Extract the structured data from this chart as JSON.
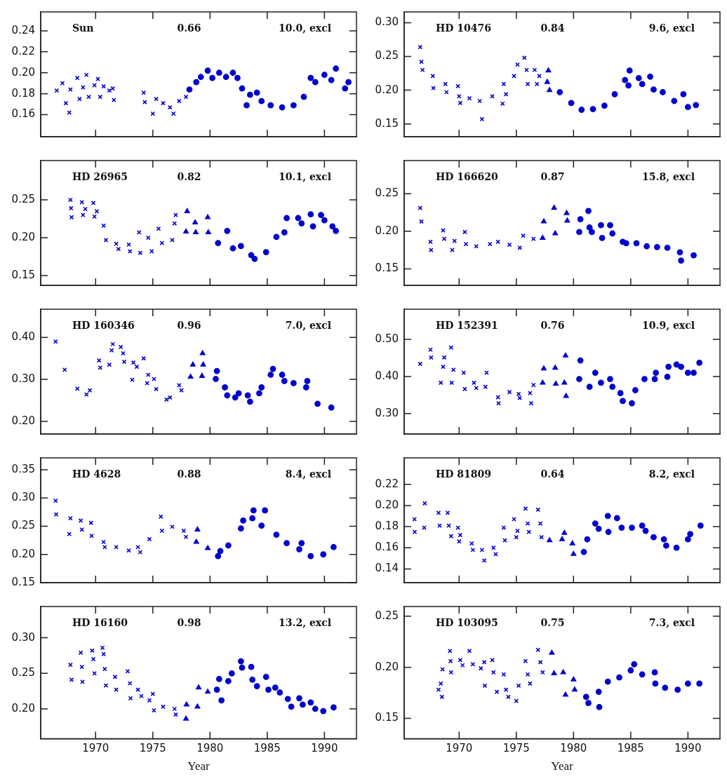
{
  "chart_data": [
    {
      "type": "scatter",
      "annotations": [
        "Sun",
        "0.66",
        "10.0, excl"
      ],
      "tick_labels": "y",
      "xlim": [
        1965.2,
        1992.8
      ],
      "xticks": [
        1970,
        1975,
        1980,
        1985,
        1990
      ],
      "ylim": [
        0.139,
        0.258
      ],
      "yticks": [
        0.16,
        0.18,
        {
          "value": 0.2,
          "label": "0.20"
        },
        0.22,
        0.24
      ],
      "series": [
        {
          "marker": "cross",
          "color": "#0000cc",
          "x": [
            1966.6,
            1967.1,
            1967.4,
            1967.7,
            1967.8,
            1968.4,
            1968.6,
            1968.9,
            1969.2,
            1969.4,
            1969.9,
            1970.2,
            1970.4,
            1970.7,
            1971.2,
            1971.5,
            1971.6,
            1974.2,
            1974.3,
            1975.0,
            1975.3,
            1975.9,
            1976.5,
            1976.8,
            1977.3,
            1977.9
          ],
          "values": [
            0.183,
            0.19,
            0.171,
            0.162,
            0.184,
            0.195,
            0.175,
            0.186,
            0.198,
            0.177,
            0.188,
            0.194,
            0.177,
            0.187,
            0.183,
            0.185,
            0.174,
            0.181,
            0.172,
            0.161,
            0.175,
            0.171,
            0.167,
            0.161,
            0.173,
            0.177
          ]
        },
        {
          "marker": "circle",
          "color": "#0000cc",
          "x": [
            1978.2,
            1978.8,
            1979.2,
            1979.8,
            1980.2,
            1980.8,
            1981.4,
            1982.0,
            1982.4,
            1982.8,
            1983.2,
            1983.5,
            1984.1,
            1984.5,
            1985.3,
            1986.3,
            1987.3,
            1988.2,
            1988.8,
            1989.2,
            1990.0,
            1990.6,
            1991.0,
            1991.8,
            1992.1
          ],
          "values": [
            0.184,
            0.191,
            0.196,
            0.202,
            0.195,
            0.2,
            0.196,
            0.2,
            0.195,
            0.185,
            0.169,
            0.179,
            0.181,
            0.173,
            0.169,
            0.167,
            0.169,
            0.177,
            0.195,
            0.191,
            0.198,
            0.193,
            0.204,
            0.185,
            0.191
          ]
        }
      ]
    },
    {
      "type": "scatter",
      "annotations": [
        "HD 10476",
        "0.84",
        "9.6, excl"
      ],
      "tick_labels": "y",
      "xlim": [
        1965.2,
        1992.8
      ],
      "xticks": [
        1970,
        1975,
        1980,
        1985,
        1990
      ],
      "ylim": [
        0.131,
        0.316
      ],
      "yticks": [
        0.15,
        {
          "value": 0.2,
          "label": "0.20"
        },
        0.25,
        {
          "value": 0.3,
          "label": "0.30"
        }
      ],
      "series": [
        {
          "marker": "cross",
          "color": "#0000cc",
          "x": [
            1966.6,
            1966.7,
            1966.8,
            1967.7,
            1967.75,
            1968.8,
            1968.9,
            1969.9,
            1970.0,
            1970.1,
            1970.9,
            1971.8,
            1972.0,
            1972.9,
            1973.8,
            1973.9,
            1974.1,
            1974.8,
            1975.1,
            1975.7,
            1975.9,
            1976.0,
            1976.6,
            1976.8,
            1977.0
          ],
          "values": [
            0.264,
            0.242,
            0.23,
            0.221,
            0.203,
            0.209,
            0.197,
            0.206,
            0.191,
            0.181,
            0.188,
            0.184,
            0.157,
            0.191,
            0.18,
            0.209,
            0.194,
            0.221,
            0.238,
            0.248,
            0.23,
            0.209,
            0.23,
            0.209,
            0.221
          ]
        },
        {
          "marker": "triangle",
          "color": "#0000cc",
          "x": [
            1977.8,
            1977.7,
            1977.9
          ],
          "values": [
            0.229,
            0.212,
            0.2
          ]
        },
        {
          "marker": "circle",
          "color": "#0000cc",
          "x": [
            1978.8,
            1979.8,
            1980.7,
            1981.7,
            1982.7,
            1983.6,
            1984.5,
            1984.9,
            1984.8,
            1985.7,
            1986.0,
            1986.7,
            1987.0,
            1987.8,
            1988.8,
            1989.6,
            1990.0,
            1990.7
          ],
          "values": [
            0.197,
            0.181,
            0.171,
            0.172,
            0.177,
            0.194,
            0.215,
            0.229,
            0.207,
            0.218,
            0.209,
            0.22,
            0.201,
            0.197,
            0.184,
            0.194,
            0.175,
            0.178
          ]
        }
      ]
    },
    {
      "type": "scatter",
      "annotations": [
        "HD 26965",
        "0.82",
        "10.1, excl"
      ],
      "tick_labels": "y",
      "xlim": [
        1965.2,
        1992.8
      ],
      "xticks": [
        1970,
        1975,
        1980,
        1985,
        1990
      ],
      "ylim": [
        0.137,
        0.302
      ],
      "yticks": [
        0.15,
        {
          "value": 0.2,
          "label": "0.20"
        },
        0.25
      ],
      "series": [
        {
          "marker": "cross",
          "color": "#0000cc",
          "x": [
            1967.8,
            1967.85,
            1967.9,
            1968.8,
            1968.9,
            1969.1,
            1969.8,
            1969.9,
            1970.1,
            1970.7,
            1970.9,
            1971.8,
            1972.0,
            1972.9,
            1973.0,
            1973.8,
            1973.9,
            1974.6,
            1974.9,
            1975.5,
            1975.8,
            1976.7,
            1976.9,
            1977.0
          ],
          "values": [
            0.25,
            0.239,
            0.227,
            0.247,
            0.23,
            0.238,
            0.246,
            0.228,
            0.235,
            0.216,
            0.197,
            0.192,
            0.185,
            0.191,
            0.182,
            0.207,
            0.18,
            0.2,
            0.182,
            0.212,
            0.193,
            0.197,
            0.219,
            0.23
          ]
        },
        {
          "marker": "triangle",
          "color": "#0000cc",
          "x": [
            1978.0,
            1977.9,
            1978.7,
            1978.75,
            1979.8,
            1979.85
          ],
          "values": [
            0.235,
            0.208,
            0.22,
            0.207,
            0.227,
            0.207
          ]
        },
        {
          "marker": "circle",
          "color": "#0000cc",
          "x": [
            1980.7,
            1981.5,
            1982.0,
            1982.7,
            1983.6,
            1983.9,
            1984.9,
            1985.8,
            1986.5,
            1986.7,
            1987.7,
            1988.0,
            1988.8,
            1989.0,
            1989.7,
            1990.0,
            1990.7,
            1991.0
          ],
          "values": [
            0.193,
            0.209,
            0.186,
            0.189,
            0.177,
            0.172,
            0.181,
            0.201,
            0.207,
            0.226,
            0.226,
            0.219,
            0.231,
            0.215,
            0.23,
            0.223,
            0.215,
            0.209
          ]
        }
      ]
    },
    {
      "type": "scatter",
      "annotations": [
        "HD 166620",
        "0.87",
        "15.8, excl"
      ],
      "tick_labels": "y",
      "xlim": [
        1965.2,
        1992.8
      ],
      "xticks": [
        1970,
        1975,
        1980,
        1985,
        1990
      ],
      "ylim": [
        0.128,
        0.294
      ],
      "yticks": [
        0.15,
        {
          "value": 0.2,
          "label": "0.20"
        },
        0.25
      ],
      "series": [
        {
          "marker": "cross",
          "color": "#0000cc",
          "x": [
            1966.6,
            1966.7,
            1967.5,
            1967.55,
            1968.6,
            1968.7,
            1969.4,
            1969.6,
            1970.5,
            1970.6,
            1971.5,
            1972.7,
            1973.4,
            1974.4,
            1975.3,
            1975.6,
            1976.5
          ],
          "values": [
            0.231,
            0.213,
            0.186,
            0.175,
            0.201,
            0.19,
            0.175,
            0.187,
            0.199,
            0.183,
            0.18,
            0.183,
            0.186,
            0.182,
            0.178,
            0.194,
            0.19
          ]
        },
        {
          "marker": "triangle",
          "color": "#0000cc",
          "x": [
            1977.3,
            1977.4,
            1978.3,
            1978.4,
            1979.4,
            1979.45
          ],
          "values": [
            0.191,
            0.213,
            0.231,
            0.197,
            0.224,
            0.214
          ]
        },
        {
          "marker": "circle",
          "color": "#0000cc",
          "x": [
            1980.5,
            1980.6,
            1981.3,
            1981.4,
            1981.6,
            1982.4,
            1982.5,
            1983.2,
            1983.4,
            1984.3,
            1984.6,
            1985.5,
            1986.4,
            1987.3,
            1988.2,
            1989.3,
            1989.4,
            1990.5
          ],
          "values": [
            0.199,
            0.216,
            0.227,
            0.205,
            0.199,
            0.208,
            0.191,
            0.208,
            0.197,
            0.186,
            0.184,
            0.184,
            0.18,
            0.179,
            0.178,
            0.172,
            0.161,
            0.168
          ]
        }
      ]
    },
    {
      "type": "scatter",
      "annotations": [
        "HD 160346",
        "0.96",
        "7.0, excl"
      ],
      "tick_labels": "y",
      "xlim": [
        1965.2,
        1992.8
      ],
      "xticks": [
        1970,
        1975,
        1980,
        1985,
        1990
      ],
      "ylim": [
        0.17,
        0.467
      ],
      "yticks": [
        {
          "value": 0.2,
          "label": "0.20"
        },
        {
          "value": 0.3,
          "label": "0.30"
        },
        {
          "value": 0.4,
          "label": "0.40"
        }
      ],
      "series": [
        {
          "marker": "cross",
          "color": "#0000cc",
          "x": [
            1966.5,
            1967.3,
            1968.4,
            1969.2,
            1969.5,
            1970.3,
            1970.4,
            1971.2,
            1971.4,
            1971.5,
            1972.2,
            1972.4,
            1972.5,
            1973.2,
            1973.3,
            1973.6,
            1974.2,
            1974.5,
            1974.6,
            1975.1,
            1975.3,
            1976.2,
            1976.5,
            1977.3,
            1977.5
          ],
          "values": [
            0.39,
            0.323,
            0.278,
            0.264,
            0.274,
            0.345,
            0.328,
            0.335,
            0.369,
            0.384,
            0.377,
            0.362,
            0.342,
            0.299,
            0.34,
            0.33,
            0.35,
            0.291,
            0.311,
            0.301,
            0.277,
            0.252,
            0.257,
            0.286,
            0.274
          ]
        },
        {
          "marker": "triangle",
          "color": "#0000cc",
          "x": [
            1978.3,
            1978.5,
            1979.3,
            1979.35,
            1979.4
          ],
          "values": [
            0.306,
            0.335,
            0.308,
            0.362,
            0.335
          ]
        },
        {
          "marker": "circle",
          "color": "#0000cc",
          "x": [
            1980.5,
            1980.6,
            1981.3,
            1981.5,
            1982.2,
            1982.5,
            1983.3,
            1983.5,
            1984.3,
            1984.5,
            1985.3,
            1985.5,
            1986.3,
            1986.5,
            1987.3,
            1988.4,
            1988.5,
            1989.4,
            1990.6
          ],
          "values": [
            0.301,
            0.32,
            0.281,
            0.262,
            0.257,
            0.267,
            0.262,
            0.247,
            0.267,
            0.281,
            0.311,
            0.325,
            0.311,
            0.296,
            0.291,
            0.281,
            0.296,
            0.242,
            0.233
          ]
        }
      ]
    },
    {
      "type": "scatter",
      "annotations": [
        "HD 152391",
        "0.76",
        "10.9, excl"
      ],
      "tick_labels": "y",
      "xlim": [
        1965.2,
        1992.8
      ],
      "xticks": [
        1970,
        1975,
        1980,
        1985,
        1990
      ],
      "ylim": [
        0.245,
        0.581
      ],
      "yticks": [
        {
          "value": 0.3,
          "label": "0.30"
        },
        {
          "value": 0.4,
          "label": "0.40"
        },
        {
          "value": 0.5,
          "label": "0.50"
        }
      ],
      "series": [
        {
          "marker": "cross",
          "color": "#0000cc",
          "x": [
            1966.6,
            1967.5,
            1967.55,
            1968.4,
            1968.6,
            1968.7,
            1969.3,
            1969.35,
            1969.5,
            1970.4,
            1970.5,
            1971.3,
            1971.5,
            1972.4,
            1972.3,
            1973.4,
            1973.45,
            1974.4,
            1975.2,
            1975.3,
            1976.2,
            1976.3,
            1976.5
          ],
          "values": [
            0.434,
            0.472,
            0.451,
            0.383,
            0.426,
            0.451,
            0.478,
            0.383,
            0.418,
            0.41,
            0.366,
            0.383,
            0.369,
            0.41,
            0.372,
            0.344,
            0.328,
            0.358,
            0.353,
            0.342,
            0.355,
            0.328,
            0.377
          ]
        },
        {
          "marker": "triangle",
          "color": "#0000cc",
          "x": [
            1977.4,
            1977.3,
            1978.4,
            1978.45,
            1979.3,
            1979.2,
            1979.35
          ],
          "values": [
            0.421,
            0.383,
            0.423,
            0.38,
            0.456,
            0.383,
            0.347
          ]
        },
        {
          "marker": "circle",
          "color": "#0000cc",
          "x": [
            1980.6,
            1980.5,
            1981.4,
            1981.9,
            1982.4,
            1983.2,
            1983.4,
            1984.1,
            1984.3,
            1985.1,
            1985.4,
            1986.2,
            1987.1,
            1987.2,
            1988.2,
            1988.3,
            1989.0,
            1989.4,
            1990.0,
            1990.5,
            1991.0
          ],
          "values": [
            0.443,
            0.393,
            0.372,
            0.41,
            0.383,
            0.393,
            0.372,
            0.355,
            0.334,
            0.328,
            0.363,
            0.393,
            0.393,
            0.41,
            0.399,
            0.426,
            0.432,
            0.426,
            0.41,
            0.41,
            0.437
          ]
        }
      ]
    },
    {
      "type": "scatter",
      "annotations": [
        "HD 4628",
        "0.88",
        "8.4, excl"
      ],
      "tick_labels": "y",
      "xlim": [
        1965.2,
        1992.8
      ],
      "xticks": [
        1970,
        1975,
        1980,
        1985,
        1990
      ],
      "ylim": [
        0.15,
        0.371
      ],
      "yticks": [
        0.15,
        {
          "value": 0.2,
          "label": "0.20"
        },
        0.25,
        {
          "value": 0.3,
          "label": "0.30"
        },
        0.35
      ],
      "series": [
        {
          "marker": "cross",
          "color": "#0000cc",
          "x": [
            1966.5,
            1966.55,
            1967.7,
            1967.8,
            1968.7,
            1968.8,
            1969.6,
            1969.65,
            1970.7,
            1970.8,
            1971.8,
            1972.9,
            1973.7,
            1973.9,
            1974.7,
            1975.7,
            1975.8,
            1976.7,
            1977.7,
            1977.9
          ],
          "values": [
            0.295,
            0.271,
            0.236,
            0.264,
            0.26,
            0.244,
            0.256,
            0.233,
            0.222,
            0.213,
            0.213,
            0.207,
            0.213,
            0.204,
            0.227,
            0.267,
            0.242,
            0.249,
            0.242,
            0.231
          ]
        },
        {
          "marker": "triangle",
          "color": "#0000cc",
          "x": [
            1978.9,
            1978.8,
            1979.8
          ],
          "values": [
            0.244,
            0.222,
            0.211
          ]
        },
        {
          "marker": "circle",
          "color": "#0000cc",
          "x": [
            1980.7,
            1980.9,
            1981.6,
            1982.7,
            1982.9,
            1983.7,
            1983.8,
            1984.5,
            1984.8,
            1985.8,
            1986.7,
            1987.8,
            1988.0,
            1988.8,
            1989.9,
            1990.8
          ],
          "values": [
            0.197,
            0.206,
            0.216,
            0.246,
            0.26,
            0.264,
            0.278,
            0.251,
            0.278,
            0.235,
            0.22,
            0.209,
            0.22,
            0.197,
            0.2,
            0.213
          ]
        }
      ]
    },
    {
      "type": "scatter",
      "annotations": [
        "HD 81809",
        "0.64",
        "8.2, excl"
      ],
      "tick_labels": "y",
      "xlim": [
        1965.2,
        1992.8
      ],
      "xticks": [
        1970,
        1975,
        1980,
        1985,
        1990
      ],
      "ylim": [
        0.127,
        0.245
      ],
      "yticks": [
        0.14,
        0.16,
        0.18,
        {
          "value": 0.2,
          "label": "0.20"
        },
        0.22
      ],
      "series": [
        {
          "marker": "cross",
          "color": "#0000cc",
          "x": [
            1966.1,
            1966.12,
            1967.0,
            1966.95,
            1968.2,
            1968.3,
            1969.0,
            1969.1,
            1969.3,
            1969.9,
            1970.0,
            1970.1,
            1971.1,
            1971.2,
            1972.0,
            1972.2,
            1973.0,
            1973.2,
            1973.9,
            1974.0,
            1974.8,
            1975.0,
            1975.1,
            1975.8,
            1976.0,
            1976.1,
            1976.9,
            1977.1,
            1977.2
          ],
          "values": [
            0.187,
            0.175,
            0.202,
            0.179,
            0.193,
            0.181,
            0.193,
            0.181,
            0.171,
            0.179,
            0.166,
            0.172,
            0.164,
            0.158,
            0.158,
            0.148,
            0.16,
            0.154,
            0.179,
            0.167,
            0.187,
            0.17,
            0.176,
            0.197,
            0.183,
            0.175,
            0.196,
            0.183,
            0.17
          ]
        },
        {
          "marker": "triangle",
          "color": "#0000cc",
          "x": [
            1977.9,
            1979.0,
            1979.2,
            1979.9,
            1980.0
          ],
          "values": [
            0.167,
            0.168,
            0.174,
            0.164,
            0.154
          ]
        },
        {
          "marker": "circle",
          "color": "#0000cc",
          "x": [
            1980.9,
            1981.2,
            1981.9,
            1982.2,
            1983.0,
            1983.05,
            1983.8,
            1984.2,
            1985.1,
            1986.0,
            1986.3,
            1987.0,
            1987.9,
            1988.1,
            1989.0,
            1990.0,
            1990.2,
            1991.1
          ],
          "values": [
            0.156,
            0.168,
            0.183,
            0.178,
            0.19,
            0.175,
            0.188,
            0.179,
            0.179,
            0.181,
            0.176,
            0.17,
            0.168,
            0.162,
            0.16,
            0.168,
            0.173,
            0.181
          ]
        }
      ]
    },
    {
      "type": "scatter",
      "annotations": [
        "HD 16160",
        "0.98",
        "13.2, excl"
      ],
      "xlabel": "Year",
      "xlim": [
        1965.2,
        1992.8
      ],
      "xticks": [
        1970,
        1975,
        1980,
        1985,
        1990
      ],
      "ylim": [
        0.158,
        0.344
      ],
      "yticks": [
        {
          "value": 0.2,
          "label": "0.20"
        },
        0.25,
        {
          "value": 0.3,
          "label": "0.30"
        }
      ],
      "series": [
        {
          "marker": "cross",
          "color": "#0000cc",
          "x": [
            1967.8,
            1967.9,
            1968.7,
            1968.8,
            1968.85,
            1969.7,
            1969.8,
            1969.9,
            1970.6,
            1970.7,
            1970.8,
            1970.9,
            1971.7,
            1971.8,
            1972.8,
            1973.0,
            1973.05,
            1973.7,
            1974.0,
            1974.7,
            1975.0,
            1975.1,
            1975.9,
            1976.9,
            1977.0
          ],
          "values": [
            0.262,
            0.241,
            0.279,
            0.259,
            0.238,
            0.282,
            0.27,
            0.25,
            0.286,
            0.277,
            0.256,
            0.233,
            0.245,
            0.227,
            0.253,
            0.236,
            0.215,
            0.227,
            0.218,
            0.212,
            0.221,
            0.198,
            0.203,
            0.2,
            0.192
          ]
        },
        {
          "marker": "triangle",
          "color": "#0000cc",
          "x": [
            1977.9,
            1977.95,
            1978.9,
            1979.0,
            1979.8
          ],
          "values": [
            0.186,
            0.206,
            0.203,
            0.23,
            0.224
          ]
        },
        {
          "marker": "circle",
          "color": "#0000cc",
          "x": [
            1980.6,
            1980.8,
            1981.0,
            1981.6,
            1981.9,
            1982.7,
            1982.8,
            1983.6,
            1983.7,
            1984.1,
            1984.9,
            1985.1,
            1985.7,
            1986.1,
            1986.8,
            1987.1,
            1987.8,
            1988.1,
            1988.8,
            1989.2,
            1989.9,
            1990.8
          ],
          "values": [
            0.227,
            0.242,
            0.212,
            0.239,
            0.25,
            0.267,
            0.258,
            0.259,
            0.241,
            0.232,
            0.245,
            0.227,
            0.23,
            0.223,
            0.214,
            0.203,
            0.215,
            0.206,
            0.209,
            0.2,
            0.197,
            0.202
          ]
        }
      ]
    },
    {
      "type": "scatter",
      "annotations": [
        "HD 103095",
        "0.75",
        "7.3, excl"
      ],
      "xlabel": "Year",
      "xlim": [
        1965.2,
        1992.8
      ],
      "xticks": [
        1970,
        1975,
        1980,
        1985,
        1990
      ],
      "ylim": [
        0.13,
        0.2595
      ],
      "yticks": [
        0.15,
        {
          "value": 0.2,
          "label": "0.20"
        },
        0.25
      ],
      "series": [
        {
          "marker": "cross",
          "color": "#0000cc",
          "x": [
            1968.2,
            1968.4,
            1968.5,
            1968.55,
            1969.2,
            1969.25,
            1969.3,
            1970.1,
            1970.3,
            1970.9,
            1971.2,
            1971.9,
            1972.2,
            1972.25,
            1972.9,
            1973.0,
            1973.3,
            1973.9,
            1974.1,
            1974.3,
            1975.0,
            1975.2,
            1975.8,
            1976.0,
            1976.2,
            1976.9,
            1977.1,
            1977.3
          ],
          "values": [
            0.178,
            0.184,
            0.171,
            0.198,
            0.216,
            0.206,
            0.195,
            0.207,
            0.202,
            0.216,
            0.203,
            0.199,
            0.205,
            0.182,
            0.207,
            0.195,
            0.176,
            0.193,
            0.178,
            0.171,
            0.167,
            0.182,
            0.206,
            0.193,
            0.184,
            0.217,
            0.205,
            0.195
          ]
        },
        {
          "marker": "triangle",
          "color": "#0000cc",
          "x": [
            1978.1,
            1978.3,
            1979.1,
            1979.3,
            1980.0,
            1980.1
          ],
          "values": [
            0.214,
            0.194,
            0.195,
            0.173,
            0.188,
            0.178
          ]
        },
        {
          "marker": "circle",
          "color": "#0000cc",
          "x": [
            1981.1,
            1981.3,
            1982.2,
            1982.25,
            1983.0,
            1984.0,
            1985.0,
            1985.3,
            1986.0,
            1987.1,
            1987.15,
            1988.0,
            1989.1,
            1990.0,
            1991.0
          ],
          "values": [
            0.171,
            0.165,
            0.176,
            0.161,
            0.186,
            0.19,
            0.197,
            0.203,
            0.193,
            0.195,
            0.184,
            0.18,
            0.178,
            0.184,
            0.184
          ]
        }
      ]
    }
  ]
}
